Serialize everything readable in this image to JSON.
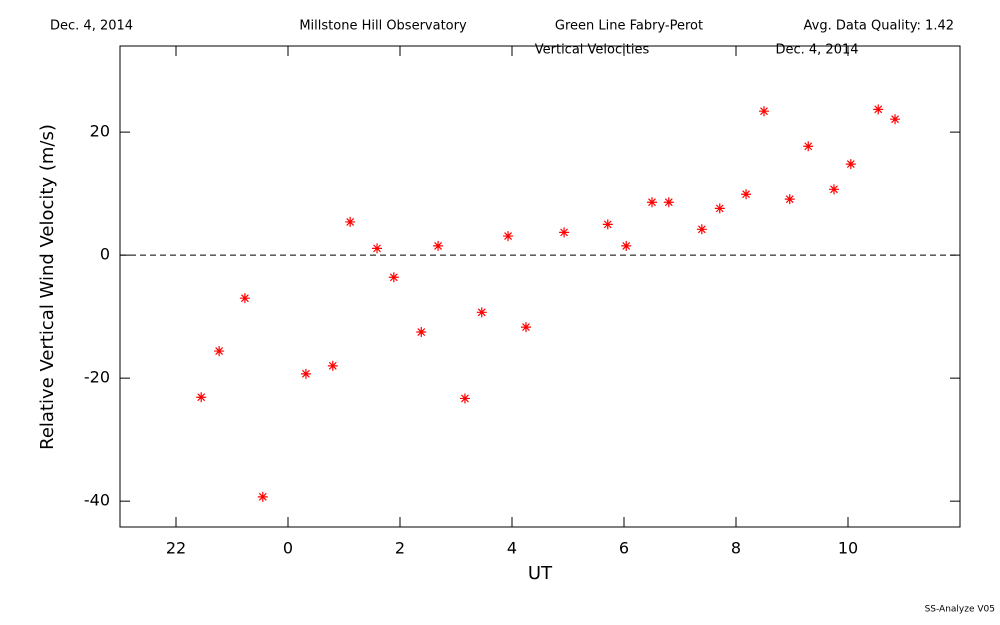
{
  "header": {
    "date": "Dec. 4, 2014",
    "observatory": "Millstone Hill Observatory",
    "instrument": "Green Line Fabry-Perot",
    "quality": "Avg. Data Quality: 1.42"
  },
  "footer": "SS-Analyze V05",
  "chart_data": {
    "type": "scatter",
    "title": "Vertical Velocities",
    "subtitle": "Dec. 4, 2014",
    "x_label": "UT",
    "y_label": "Relative Vertical Wind Velocity (m/s)",
    "color": "#ff0000",
    "x": [
      22.45,
      22.77,
      23.23,
      23.55,
      24.32,
      24.8,
      25.11,
      25.59,
      25.89,
      26.38,
      26.68,
      27.16,
      27.46,
      27.93,
      28.25,
      28.93,
      29.71,
      30.04,
      30.5,
      30.8,
      31.39,
      31.71,
      32.18,
      32.5,
      32.96,
      33.29,
      33.75,
      34.05,
      34.54,
      34.84
    ],
    "values": [
      -23.1,
      -15.6,
      -7.0,
      -39.3,
      -19.3,
      -18.0,
      5.4,
      1.1,
      -3.6,
      -12.5,
      1.5,
      -23.3,
      -9.3,
      3.1,
      -11.7,
      3.7,
      5.0,
      1.5,
      8.6,
      8.6,
      4.2,
      7.6,
      9.9,
      23.4,
      9.1,
      17.7,
      10.7,
      14.8,
      23.7,
      22.1
    ],
    "xlim": [
      21,
      36
    ],
    "xticks": [
      22,
      {
        "value": 24,
        "label": "0"
      },
      {
        "value": 26,
        "label": "2"
      },
      {
        "value": 28,
        "label": "4"
      },
      {
        "value": 30,
        "label": "6"
      },
      {
        "value": 32,
        "label": "8"
      },
      {
        "value": 34,
        "label": "10"
      }
    ],
    "ylim": [
      -44.2,
      34
    ],
    "yticks": [
      -40,
      -20,
      0,
      20
    ]
  }
}
